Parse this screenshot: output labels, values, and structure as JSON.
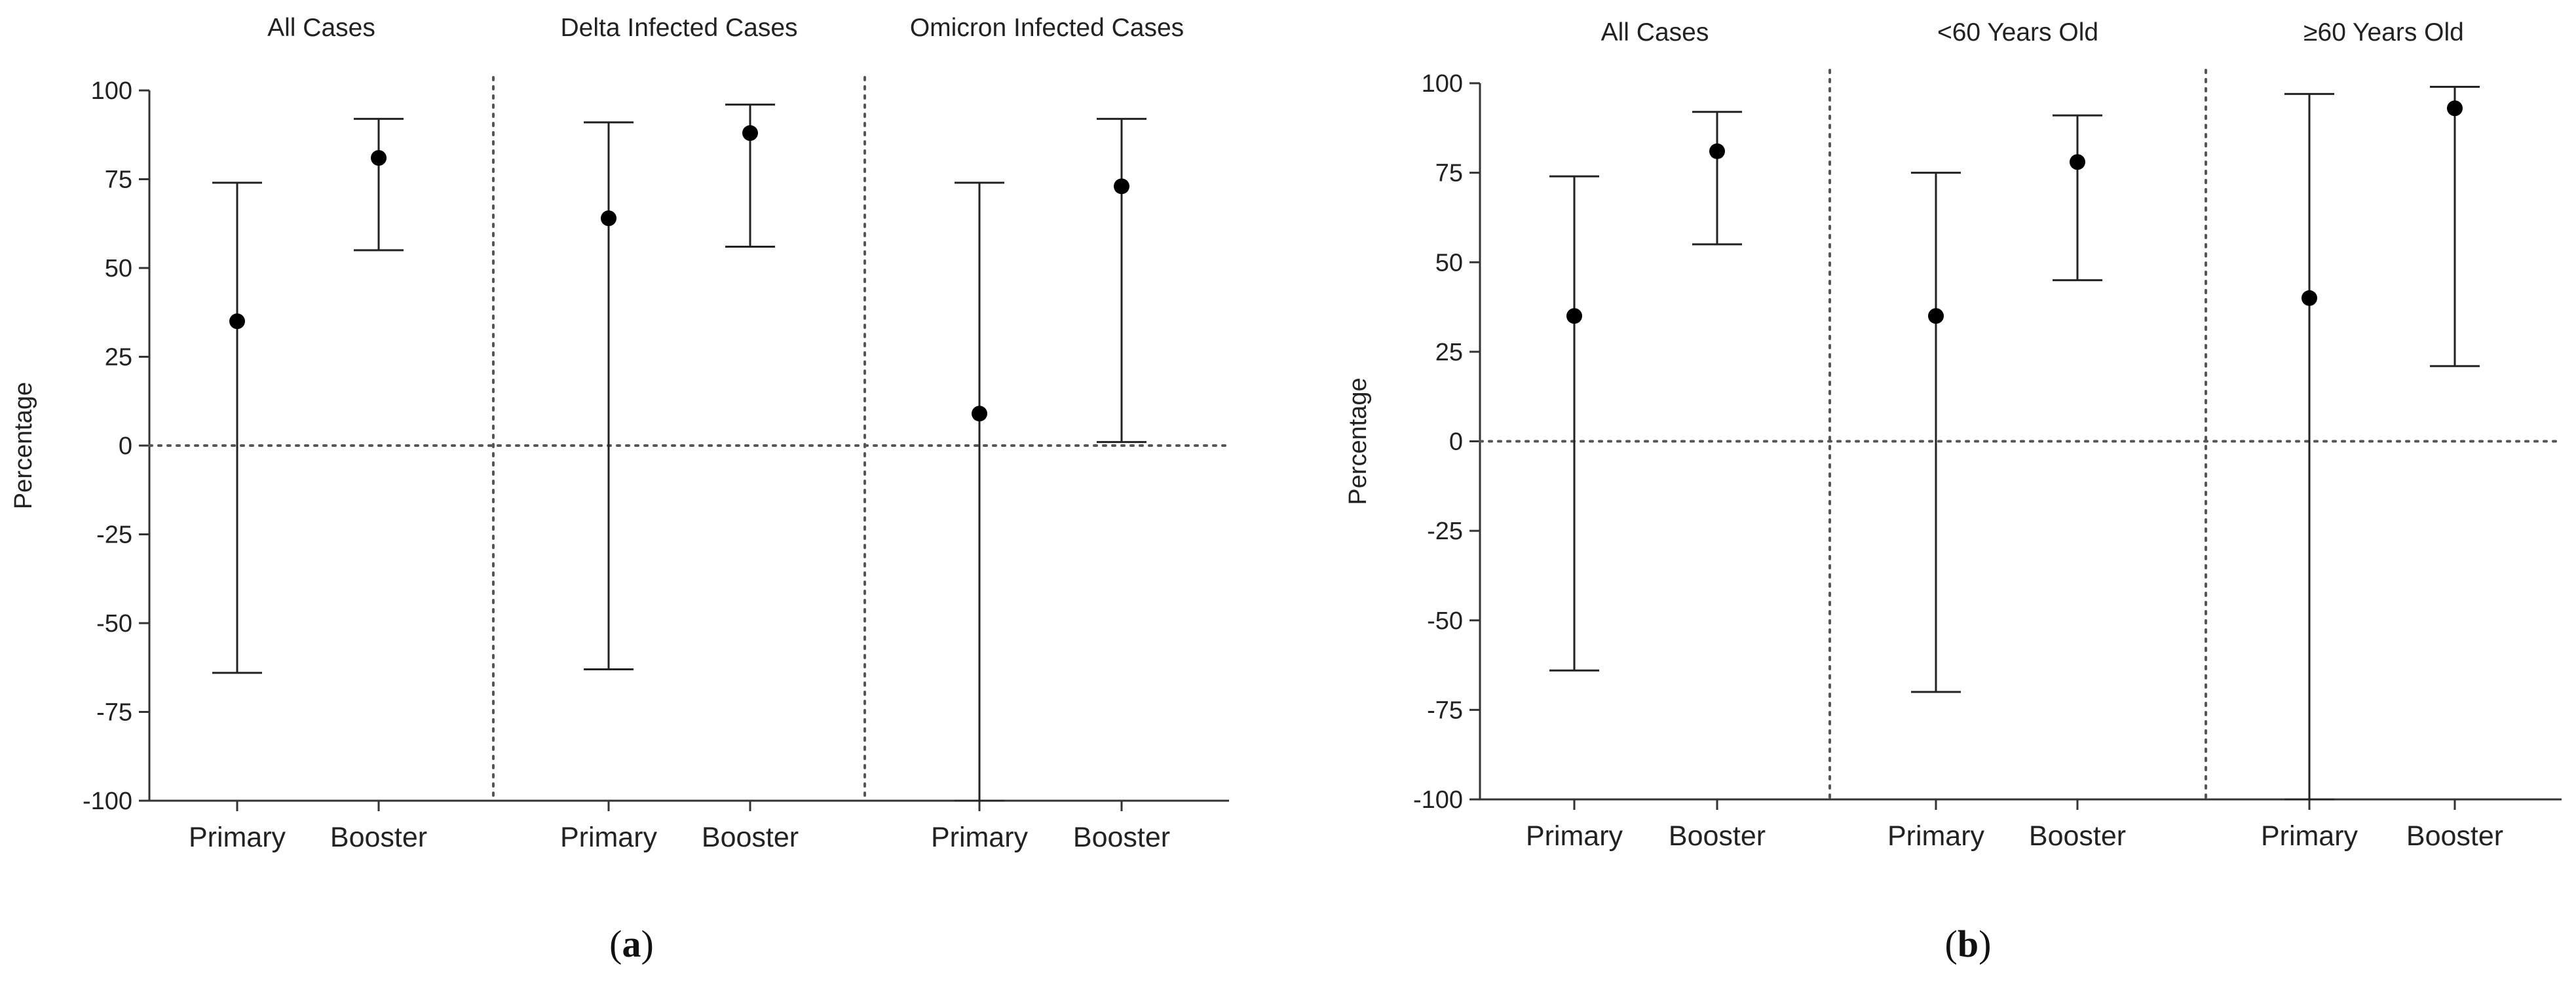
{
  "colors": {
    "axis": "#333333",
    "errorbar": "#222222",
    "marker": "#000000",
    "reference_line": "#555555",
    "text": "#222222"
  },
  "chart_data": [
    {
      "type": "scatter",
      "panel": "(a)",
      "panel_label_open": "(",
      "panel_label_letter": "a",
      "panel_label_close": ")",
      "ylabel": "Percentage",
      "ylim": [
        -100,
        100
      ],
      "yticks": [
        100,
        75,
        50,
        25,
        0,
        -25,
        -50,
        -75,
        -100
      ],
      "reference_line_y": 0,
      "groups": [
        {
          "title": "All Cases",
          "points": [
            {
              "category": "Primary",
              "estimate": 35,
              "lower": -64,
              "upper": 74
            },
            {
              "category": "Booster",
              "estimate": 81,
              "lower": 55,
              "upper": 92
            }
          ]
        },
        {
          "title": "Delta Infected Cases",
          "points": [
            {
              "category": "Primary",
              "estimate": 64,
              "lower": -63,
              "upper": 91
            },
            {
              "category": "Booster",
              "estimate": 88,
              "lower": 56,
              "upper": 96
            }
          ]
        },
        {
          "title": "Omicron Infected Cases",
          "points": [
            {
              "category": "Primary",
              "estimate": 9,
              "lower": -100,
              "upper": 74
            },
            {
              "category": "Booster",
              "estimate": 73,
              "lower": 1,
              "upper": 92
            }
          ]
        }
      ]
    },
    {
      "type": "scatter",
      "panel": "(b)",
      "panel_label_open": "(",
      "panel_label_letter": "b",
      "panel_label_close": ")",
      "ylabel": "Percentage",
      "ylim": [
        -100,
        100
      ],
      "yticks": [
        100,
        75,
        50,
        25,
        0,
        -25,
        -50,
        -75,
        -100
      ],
      "reference_line_y": 0,
      "groups": [
        {
          "title": "All Cases",
          "points": [
            {
              "category": "Primary",
              "estimate": 35,
              "lower": -64,
              "upper": 74
            },
            {
              "category": "Booster",
              "estimate": 81,
              "lower": 55,
              "upper": 92
            }
          ]
        },
        {
          "title": "<60 Years Old",
          "points": [
            {
              "category": "Primary",
              "estimate": 35,
              "lower": -70,
              "upper": 75
            },
            {
              "category": "Booster",
              "estimate": 78,
              "lower": 45,
              "upper": 91
            }
          ]
        },
        {
          "title": "≥60 Years Old",
          "points": [
            {
              "category": "Primary",
              "estimate": 40,
              "lower": -100,
              "upper": 97
            },
            {
              "category": "Booster",
              "estimate": 93,
              "lower": 21,
              "upper": 99
            }
          ]
        }
      ]
    }
  ]
}
